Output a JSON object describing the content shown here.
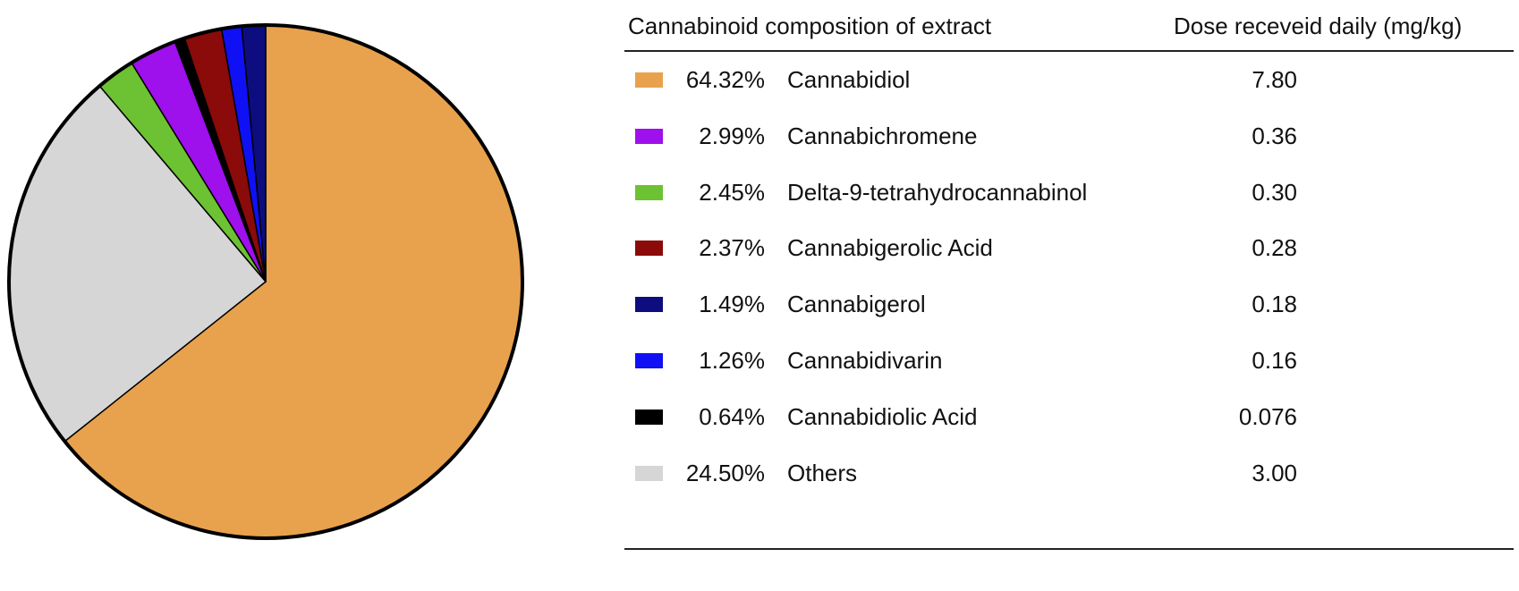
{
  "chart_data": {
    "type": "pie",
    "table_header": {
      "composition": "Cannabinoid composition of extract",
      "dose": "Dose receveid daily (mg/kg)"
    },
    "slices": [
      {
        "label": "Cannabidiol",
        "percent_label": "64.32%",
        "value": 64.32,
        "dose": "7.80",
        "color": "#E8A24D"
      },
      {
        "label": "Cannabichromene",
        "percent_label": "2.99%",
        "value": 2.99,
        "dose": "0.36",
        "color": "#9E10EC"
      },
      {
        "label": "Delta-9-tetrahydrocannabinol",
        "percent_label": "2.45%",
        "value": 2.45,
        "dose": "0.30",
        "color": "#6CC232"
      },
      {
        "label": "Cannabigerolic Acid",
        "percent_label": "2.37%",
        "value": 2.37,
        "dose": "0.28",
        "color": "#8B0A0A"
      },
      {
        "label": "Cannabigerol",
        "percent_label": "1.49%",
        "value": 1.49,
        "dose": "0.18",
        "color": "#0D0D80"
      },
      {
        "label": "Cannabidivarin",
        "percent_label": "1.26%",
        "value": 1.26,
        "dose": "0.16",
        "color": "#1010F5"
      },
      {
        "label": "Cannabidiolic Acid",
        "percent_label": "0.64%",
        "value": 0.64,
        "dose": "0.076",
        "color": "#000000"
      },
      {
        "label": "Others",
        "percent_label": "24.50%",
        "value": 24.5,
        "dose": "3.00",
        "color": "#D6D6D6"
      }
    ],
    "pie_clockwise_order_from_top": [
      "Cannabidiol",
      "Others",
      "Delta-9-tetrahydrocannabinol",
      "Cannabichromene",
      "Cannabidiolic Acid",
      "Cannabigerolic Acid",
      "Cannabidivarin",
      "Cannabigerol"
    ],
    "pie_direction": "counterclockwise from top: Cannabidiol first",
    "legend_placement": "right"
  }
}
